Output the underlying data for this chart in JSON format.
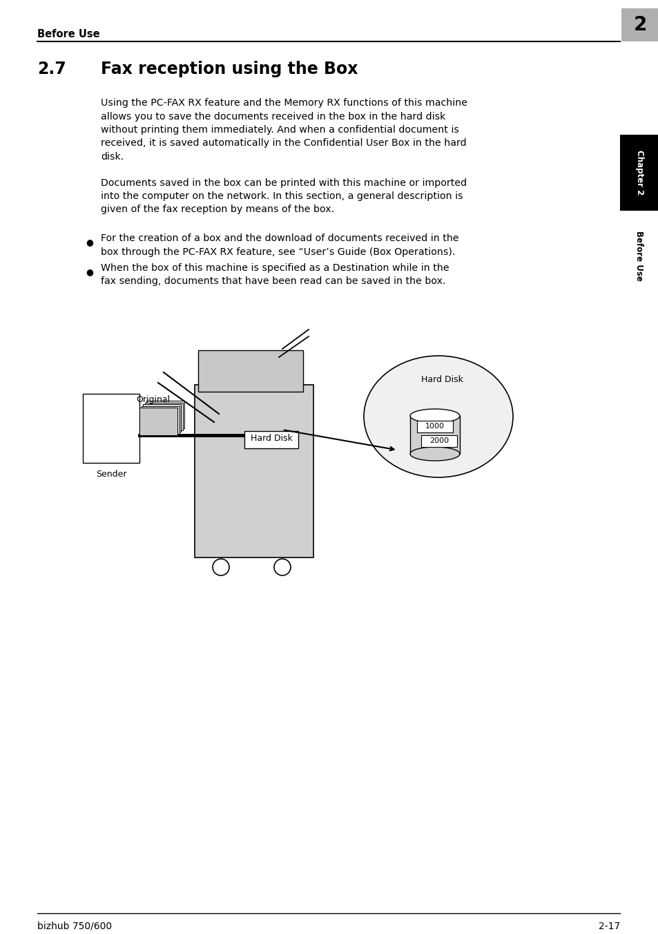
{
  "title_section": "Before Use",
  "chapter_num": "2",
  "section_num": "2.7",
  "section_title": "Fax reception using the Box",
  "para1_lines": [
    "Using the PC-FAX RX feature and the Memory RX functions of this machine",
    "allows you to save the documents received in the box in the hard disk",
    "without printing them immediately. And when a confidential document is",
    "received, it is saved automatically in the Confidential User Box in the hard",
    "disk."
  ],
  "para2_lines": [
    "Documents saved in the box can be printed with this machine or imported",
    "into the computer on the network. In this section, a general description is",
    "given of the fax reception by means of the box."
  ],
  "bullet1_lines": [
    "For the creation of a box and the download of documents received in the",
    "box through the PC-FAX RX feature, see “User’s Guide (Box Operations)."
  ],
  "bullet2_lines": [
    "When the box of this machine is specified as a Destination while in the",
    "fax sending, documents that have been read can be saved in the box."
  ],
  "footer_left": "bizhub 750/600",
  "footer_right": "2-17",
  "sidebar_top": "Chapter 2",
  "sidebar_bottom": "Before Use",
  "bg_color": "#ffffff",
  "text_color": "#000000",
  "gray_box_color": "#b0b0b0",
  "light_gray": "#d0d0d0",
  "lighter_gray": "#e0e0e0",
  "sidebar_bg": "#000000",
  "sidebar_text": "#ffffff"
}
